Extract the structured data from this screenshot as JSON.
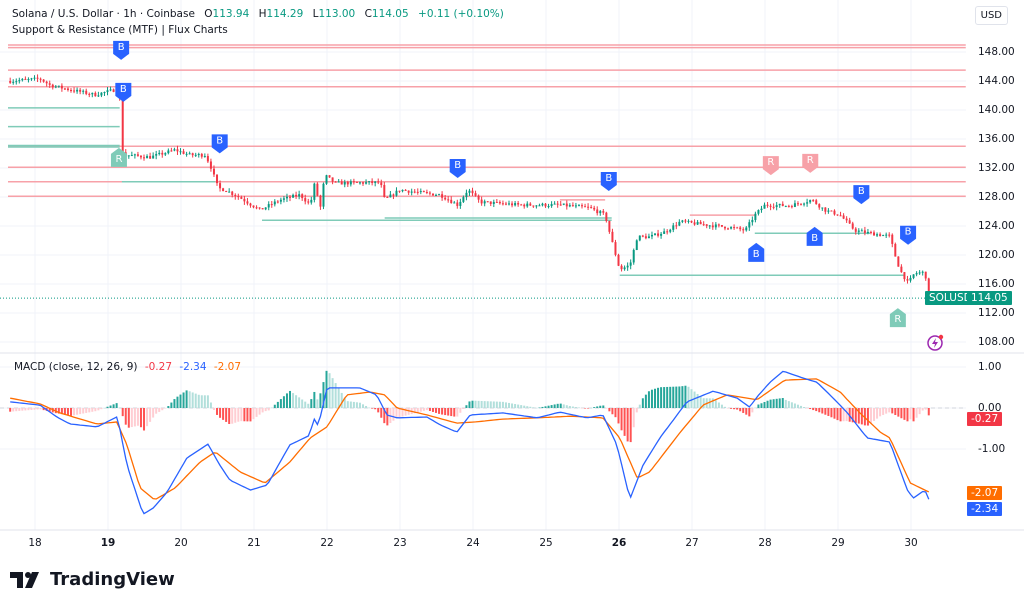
{
  "header": {
    "symbol_line": "Solana / U.S. Dollar · 1h · Coinbase",
    "open_label": "O",
    "open": "113.94",
    "high_label": "H",
    "high": "114.29",
    "low_label": "L",
    "low": "113.00",
    "close_label": "C",
    "close": "114.05",
    "change": "+0.11 (+0.10%)",
    "indicator": "Support & Resistance (MTF) | Flux Charts",
    "currency": "USD"
  },
  "colors": {
    "up": "#089981",
    "down": "#f23645",
    "resistance": "#f7a1a8",
    "support": "#7fcbb8",
    "marker_blue": "#2962ff",
    "macd": "#2962ff",
    "signal": "#ff6d00",
    "grid": "#f0f3fa"
  },
  "chart_data": [
    {
      "type": "candlestick",
      "title": "Solana / U.S. Dollar · 1h · Coinbase",
      "x_unit": "day of month",
      "xlim": [
        17.63,
        30.75
      ],
      "ylim": [
        106,
        150
      ],
      "x_ticks": [
        {
          "v": 18,
          "label": "18"
        },
        {
          "v": 19,
          "label": "19",
          "bold": true
        },
        {
          "v": 20,
          "label": "20"
        },
        {
          "v": 21,
          "label": "21"
        },
        {
          "v": 22,
          "label": "22"
        },
        {
          "v": 23,
          "label": "23"
        },
        {
          "v": 24,
          "label": "24"
        },
        {
          "v": 25,
          "label": "25"
        },
        {
          "v": 26,
          "label": "26",
          "bold": true
        },
        {
          "v": 27,
          "label": "27"
        },
        {
          "v": 28,
          "label": "28"
        },
        {
          "v": 29,
          "label": "29"
        },
        {
          "v": 30,
          "label": "30"
        }
      ],
      "y_ticks": [
        "148.00",
        "144.00",
        "140.00",
        "136.00",
        "132.00",
        "128.00",
        "124.00",
        "120.00",
        "116.00",
        "112.00",
        "108.00"
      ],
      "close_path": [
        [
          17.66,
          144.0
        ],
        [
          18.07,
          144.3
        ],
        [
          18.21,
          143.4
        ],
        [
          18.48,
          142.8
        ],
        [
          18.82,
          142.1
        ],
        [
          19.1,
          142.8
        ],
        [
          19.16,
          141.5
        ],
        [
          19.19,
          134.5
        ],
        [
          19.23,
          133.8
        ],
        [
          19.58,
          133.5
        ],
        [
          19.92,
          134.5
        ],
        [
          20.12,
          133.8
        ],
        [
          20.33,
          133.8
        ],
        [
          20.4,
          132.4
        ],
        [
          20.51,
          129.2
        ],
        [
          20.6,
          129.0
        ],
        [
          20.81,
          127.9
        ],
        [
          21.08,
          126.2
        ],
        [
          21.36,
          127.6
        ],
        [
          21.63,
          128.3
        ],
        [
          21.77,
          126.9
        ],
        [
          21.84,
          130.3
        ],
        [
          21.9,
          125.9
        ],
        [
          21.97,
          131.0
        ],
        [
          22.11,
          129.9
        ],
        [
          22.73,
          130.0
        ],
        [
          22.79,
          127.6
        ],
        [
          23.0,
          129.0
        ],
        [
          23.27,
          128.6
        ],
        [
          23.55,
          128.3
        ],
        [
          23.79,
          126.9
        ],
        [
          23.93,
          129.0
        ],
        [
          24.1,
          127.3
        ],
        [
          24.64,
          126.9
        ],
        [
          25.19,
          126.9
        ],
        [
          25.6,
          126.5
        ],
        [
          25.81,
          125.5
        ],
        [
          25.9,
          122.0
        ],
        [
          26.01,
          118.0
        ],
        [
          26.15,
          118.6
        ],
        [
          26.25,
          122.5
        ],
        [
          26.42,
          122.5
        ],
        [
          26.63,
          123.2
        ],
        [
          26.84,
          124.6
        ],
        [
          27.25,
          124.1
        ],
        [
          27.52,
          123.8
        ],
        [
          27.73,
          123.4
        ],
        [
          27.86,
          125.5
        ],
        [
          28.0,
          126.9
        ],
        [
          28.34,
          126.8
        ],
        [
          28.64,
          127.6
        ],
        [
          28.82,
          126.2
        ],
        [
          29.03,
          125.5
        ],
        [
          29.23,
          123.4
        ],
        [
          29.44,
          123.0
        ],
        [
          29.71,
          122.6
        ],
        [
          29.78,
          120.0
        ],
        [
          29.85,
          117.9
        ],
        [
          29.96,
          116.1
        ],
        [
          30.05,
          117.5
        ],
        [
          30.19,
          117.6
        ],
        [
          30.26,
          114.05
        ]
      ],
      "last_price": {
        "symbol": "SOLUSD",
        "value": "114.05",
        "price": 114.05
      },
      "resistance_lines": [
        [
          148.97,
          17.63,
          30.75
        ],
        [
          148.6,
          17.63,
          30.75
        ],
        [
          145.5,
          17.63,
          30.75
        ],
        [
          143.2,
          17.63,
          30.75
        ],
        [
          135.0,
          17.63,
          30.75
        ],
        [
          132.1,
          17.63,
          30.75
        ],
        [
          130.1,
          17.63,
          30.75
        ],
        [
          128.1,
          17.63,
          30.75
        ],
        [
          125.5,
          26.97,
          27.88
        ],
        [
          127.6,
          25.19,
          25.81
        ]
      ],
      "support_lines": [
        [
          140.3,
          17.63,
          19.16
        ],
        [
          137.7,
          17.63,
          19.16
        ],
        [
          135.1,
          17.63,
          19.16
        ],
        [
          134.9,
          17.63,
          19.16
        ],
        [
          130.1,
          19.19,
          20.47
        ],
        [
          124.8,
          21.11,
          25.9
        ],
        [
          125.1,
          22.79,
          25.9
        ],
        [
          117.2,
          26.01,
          29.92
        ],
        [
          123.0,
          27.86,
          29.44
        ]
      ],
      "markers": [
        {
          "label": "B",
          "t": 19.18,
          "price": 148.3,
          "dir": "down",
          "kind": "blue"
        },
        {
          "label": "B",
          "t": 19.21,
          "price": 142.5,
          "dir": "down",
          "kind": "blue"
        },
        {
          "label": "B",
          "t": 20.53,
          "price": 135.4,
          "dir": "down",
          "kind": "blue"
        },
        {
          "label": "B",
          "t": 23.79,
          "price": 132.0,
          "dir": "down",
          "kind": "blue"
        },
        {
          "label": "B",
          "t": 25.86,
          "price": 130.2,
          "dir": "down",
          "kind": "blue"
        },
        {
          "label": "B",
          "t": 29.32,
          "price": 128.4,
          "dir": "down",
          "kind": "blue"
        },
        {
          "label": "B",
          "t": 29.96,
          "price": 122.8,
          "dir": "down",
          "kind": "blue"
        },
        {
          "label": "B",
          "t": 27.88,
          "price": 120.3,
          "dir": "up",
          "kind": "blue"
        },
        {
          "label": "B",
          "t": 28.68,
          "price": 122.5,
          "dir": "up",
          "kind": "blue"
        },
        {
          "label": "R",
          "t": 28.08,
          "price": 132.4,
          "dir": "down",
          "kind": "red"
        },
        {
          "label": "R",
          "t": 28.62,
          "price": 132.7,
          "dir": "down",
          "kind": "red"
        },
        {
          "label": "R",
          "t": 19.15,
          "price": 133.4,
          "dir": "up",
          "kind": "green"
        },
        {
          "label": "R",
          "t": 29.82,
          "price": 111.3,
          "dir": "up",
          "kind": "green"
        }
      ]
    },
    {
      "type": "macd",
      "title": "MACD (close, 12, 26, 9)",
      "ylim": [
        -2.9,
        1.2
      ],
      "y_ticks": [
        "1.00",
        "0.00",
        "-1.00"
      ],
      "values": {
        "histogram": "-0.27",
        "macd": "-2.34",
        "signal": "-2.07"
      },
      "macd_path": [
        [
          17.66,
          0.15
        ],
        [
          18.07,
          0.07
        ],
        [
          18.3,
          -0.22
        ],
        [
          18.48,
          -0.39
        ],
        [
          18.85,
          -0.46
        ],
        [
          19.12,
          -0.22
        ],
        [
          19.16,
          -0.49
        ],
        [
          19.26,
          -1.39
        ],
        [
          19.48,
          -2.59
        ],
        [
          19.62,
          -2.44
        ],
        [
          19.81,
          -2.05
        ],
        [
          20.08,
          -1.22
        ],
        [
          20.37,
          -0.88
        ],
        [
          20.53,
          -1.39
        ],
        [
          20.67,
          -1.76
        ],
        [
          20.95,
          -2.0
        ],
        [
          21.18,
          -1.88
        ],
        [
          21.49,
          -0.9
        ],
        [
          21.77,
          -0.66
        ],
        [
          21.81,
          -0.22
        ],
        [
          21.88,
          -0.44
        ],
        [
          22.0,
          0.49
        ],
        [
          22.45,
          0.49
        ],
        [
          22.68,
          0.32
        ],
        [
          22.82,
          -0.17
        ],
        [
          22.96,
          -0.24
        ],
        [
          23.37,
          -0.22
        ],
        [
          23.55,
          -0.41
        ],
        [
          23.78,
          -0.59
        ],
        [
          23.96,
          -0.17
        ],
        [
          24.41,
          -0.12
        ],
        [
          24.88,
          -0.24
        ],
        [
          25.19,
          -0.1
        ],
        [
          25.56,
          -0.24
        ],
        [
          25.78,
          -0.17
        ],
        [
          25.97,
          -0.9
        ],
        [
          26.15,
          -2.22
        ],
        [
          26.33,
          -1.39
        ],
        [
          26.56,
          -0.73
        ],
        [
          26.93,
          0.15
        ],
        [
          27.29,
          0.41
        ],
        [
          27.62,
          0.24
        ],
        [
          27.79,
          0.02
        ],
        [
          27.89,
          0.27
        ],
        [
          28.07,
          0.63
        ],
        [
          28.25,
          0.9
        ],
        [
          28.52,
          0.73
        ],
        [
          28.71,
          0.63
        ],
        [
          28.89,
          0.32
        ],
        [
          29.12,
          -0.1
        ],
        [
          29.4,
          -0.73
        ],
        [
          29.71,
          -0.83
        ],
        [
          29.95,
          -2.0
        ],
        [
          30.03,
          -2.2
        ],
        [
          30.19,
          -2.0
        ],
        [
          30.27,
          -2.34
        ]
      ],
      "signal_path": [
        [
          17.66,
          0.24
        ],
        [
          18.07,
          0.1
        ],
        [
          18.34,
          -0.12
        ],
        [
          18.85,
          -0.39
        ],
        [
          19.12,
          -0.34
        ],
        [
          19.26,
          -0.9
        ],
        [
          19.44,
          -1.95
        ],
        [
          19.64,
          -2.24
        ],
        [
          19.92,
          -1.95
        ],
        [
          20.26,
          -1.32
        ],
        [
          20.47,
          -1.07
        ],
        [
          20.81,
          -1.56
        ],
        [
          21.15,
          -1.83
        ],
        [
          21.49,
          -1.32
        ],
        [
          21.77,
          -0.73
        ],
        [
          22.0,
          -0.46
        ],
        [
          22.27,
          0.32
        ],
        [
          22.59,
          0.39
        ],
        [
          22.79,
          0.32
        ],
        [
          22.96,
          0.0
        ],
        [
          23.37,
          -0.17
        ],
        [
          23.78,
          -0.37
        ],
        [
          24.03,
          -0.34
        ],
        [
          24.41,
          -0.27
        ],
        [
          24.88,
          -0.24
        ],
        [
          25.33,
          -0.2
        ],
        [
          25.78,
          -0.24
        ],
        [
          26.01,
          -0.73
        ],
        [
          26.25,
          -1.71
        ],
        [
          26.42,
          -1.56
        ],
        [
          26.84,
          -0.59
        ],
        [
          27.15,
          0.07
        ],
        [
          27.48,
          0.32
        ],
        [
          27.89,
          0.2
        ],
        [
          28.27,
          0.68
        ],
        [
          28.71,
          0.71
        ],
        [
          29.03,
          0.39
        ],
        [
          29.3,
          -0.12
        ],
        [
          29.58,
          -0.59
        ],
        [
          29.71,
          -0.73
        ],
        [
          29.99,
          -1.83
        ],
        [
          30.27,
          -2.07
        ]
      ]
    }
  ],
  "branding": {
    "name": "TradingView"
  }
}
